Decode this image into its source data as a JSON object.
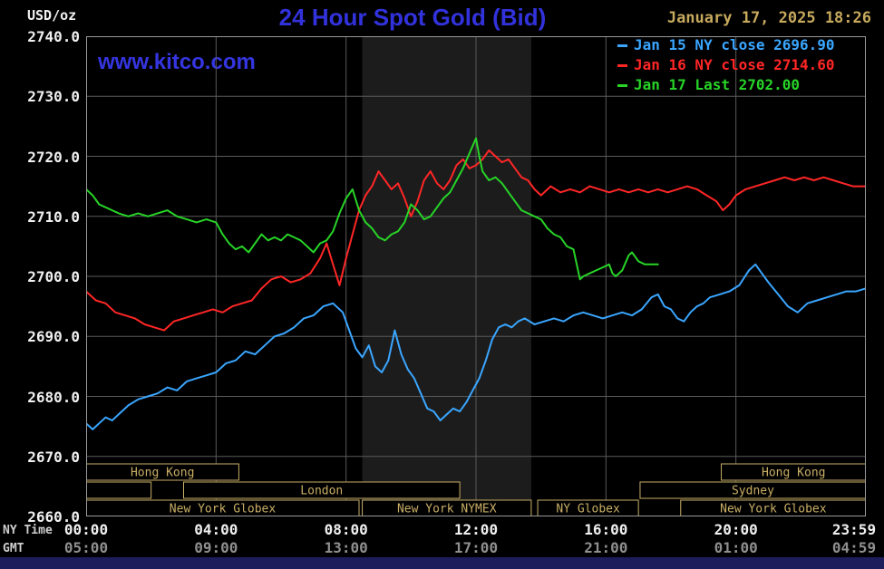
{
  "header": {
    "units": "USD/oz",
    "title": "24 Hour Spot Gold (Bid)",
    "datetime": "January 17, 2025 18:26",
    "watermark": "www.kitco.com"
  },
  "legend": [
    {
      "label": "Jan 15 NY close 2696.90",
      "color": "#3aa6ff"
    },
    {
      "label": "Jan 16 NY close 2714.60",
      "color": "#ff2626"
    },
    {
      "label": "Jan 17 Last 2702.00",
      "color": "#27d427"
    }
  ],
  "axes": {
    "ny_time_label": "NY Time",
    "gmt_label": "GMT",
    "y_ticks": [
      "2740.0",
      "2730.0",
      "2720.0",
      "2710.0",
      "2700.0",
      "2690.0",
      "2680.0",
      "2670.0",
      "2660.0"
    ],
    "x_tick_hours": [
      0,
      4,
      8,
      12,
      16,
      20,
      23.983
    ],
    "x_ticks_ny": [
      "00:00",
      "04:00",
      "08:00",
      "12:00",
      "16:00",
      "20:00",
      "23:59"
    ],
    "x_ticks_gmt": [
      "05:00",
      "09:00",
      "13:00",
      "17:00",
      "21:00",
      "01:00",
      "04:59"
    ]
  },
  "sessions": [
    {
      "row": 1,
      "start": 0,
      "end": 4.7,
      "label": "Hong Kong"
    },
    {
      "row": 1,
      "start": 19.55,
      "end": 24,
      "label": "Hong Kong"
    },
    {
      "row": 2,
      "start": 0,
      "end": 2.0,
      "label": ""
    },
    {
      "row": 2,
      "start": 3.0,
      "end": 11.5,
      "label": "London"
    },
    {
      "row": 2,
      "start": 17.05,
      "end": 24,
      "label": "Sydney"
    },
    {
      "row": 3,
      "start": 0,
      "end": 8.4,
      "label": "New York Globex"
    },
    {
      "row": 3,
      "start": 8.5,
      "end": 13.7,
      "label": "New York NYMEX"
    },
    {
      "row": 3,
      "start": 13.9,
      "end": 17.0,
      "label": "NY Globex"
    },
    {
      "row": 3,
      "start": 18.3,
      "end": 24,
      "label": "New York Globex"
    }
  ],
  "colors": {
    "background": "#000000",
    "grid": "#5a5a5a",
    "plot_border": "#999999",
    "shaded_band": "#1c1c1c",
    "session_box": "#c9ae66",
    "title_blue": "#3232dd",
    "date_gold": "#c6a95d",
    "gmt_tick_gray": "#8f8f8f",
    "bottom_bar": "#1d1d5c"
  },
  "chart_data": {
    "type": "line",
    "title": "24 Hour Spot Gold (Bid)",
    "ylabel": "USD/oz",
    "x_unit": "hours, NY time",
    "x_range": [
      0,
      24
    ],
    "ylim": [
      2660,
      2740
    ],
    "y_gridline_step": 10,
    "x_gridline_hours": [
      4,
      8,
      12,
      16,
      20
    ],
    "shaded_band_hours": [
      8.5,
      13.7
    ],
    "legend_position": "top-right",
    "grid": true,
    "series": [
      {
        "id": "jan15",
        "name": "Jan 15 NY close",
        "close": 2696.9,
        "color": "#3aa6ff",
        "points": [
          [
            0,
            2675.5
          ],
          [
            0.2,
            2674.5
          ],
          [
            0.4,
            2675.5
          ],
          [
            0.6,
            2676.5
          ],
          [
            0.8,
            2676
          ],
          [
            1,
            2677
          ],
          [
            1.3,
            2678.5
          ],
          [
            1.6,
            2679.5
          ],
          [
            1.9,
            2680
          ],
          [
            2.2,
            2680.5
          ],
          [
            2.5,
            2681.5
          ],
          [
            2.8,
            2681
          ],
          [
            3.1,
            2682.5
          ],
          [
            3.4,
            2683
          ],
          [
            3.7,
            2683.5
          ],
          [
            4,
            2684
          ],
          [
            4.3,
            2685.5
          ],
          [
            4.6,
            2686
          ],
          [
            4.9,
            2687.5
          ],
          [
            5.2,
            2687
          ],
          [
            5.5,
            2688.5
          ],
          [
            5.8,
            2690
          ],
          [
            6.1,
            2690.5
          ],
          [
            6.4,
            2691.5
          ],
          [
            6.7,
            2693
          ],
          [
            7,
            2693.5
          ],
          [
            7.3,
            2695
          ],
          [
            7.6,
            2695.5
          ],
          [
            7.9,
            2694
          ],
          [
            8.1,
            2691
          ],
          [
            8.3,
            2688
          ],
          [
            8.5,
            2686.5
          ],
          [
            8.7,
            2688.5
          ],
          [
            8.9,
            2685
          ],
          [
            9.1,
            2684
          ],
          [
            9.3,
            2686
          ],
          [
            9.5,
            2691
          ],
          [
            9.7,
            2687
          ],
          [
            9.9,
            2684.5
          ],
          [
            10.1,
            2683
          ],
          [
            10.3,
            2680.5
          ],
          [
            10.5,
            2678
          ],
          [
            10.7,
            2677.5
          ],
          [
            10.9,
            2676
          ],
          [
            11.1,
            2677
          ],
          [
            11.3,
            2678
          ],
          [
            11.5,
            2677.5
          ],
          [
            11.7,
            2679
          ],
          [
            11.9,
            2681
          ],
          [
            12.1,
            2683
          ],
          [
            12.3,
            2686
          ],
          [
            12.5,
            2689.5
          ],
          [
            12.7,
            2691.5
          ],
          [
            12.9,
            2692
          ],
          [
            13.1,
            2691.5
          ],
          [
            13.3,
            2692.5
          ],
          [
            13.5,
            2693
          ],
          [
            13.8,
            2692
          ],
          [
            14.1,
            2692.5
          ],
          [
            14.4,
            2693
          ],
          [
            14.7,
            2692.5
          ],
          [
            15,
            2693.5
          ],
          [
            15.3,
            2694
          ],
          [
            15.6,
            2693.5
          ],
          [
            15.9,
            2693
          ],
          [
            16.2,
            2693.5
          ],
          [
            16.5,
            2694
          ],
          [
            16.8,
            2693.5
          ],
          [
            17.1,
            2694.5
          ],
          [
            17.4,
            2696.5
          ],
          [
            17.6,
            2697
          ],
          [
            17.8,
            2695
          ],
          [
            18,
            2694.5
          ],
          [
            18.2,
            2693
          ],
          [
            18.4,
            2692.5
          ],
          [
            18.6,
            2694
          ],
          [
            18.8,
            2695
          ],
          [
            19,
            2695.5
          ],
          [
            19.2,
            2696.5
          ],
          [
            19.5,
            2697
          ],
          [
            19.8,
            2697.5
          ],
          [
            20.1,
            2698.5
          ],
          [
            20.4,
            2701
          ],
          [
            20.6,
            2702
          ],
          [
            20.8,
            2700.5
          ],
          [
            21,
            2699
          ],
          [
            21.3,
            2697
          ],
          [
            21.6,
            2695
          ],
          [
            21.9,
            2694
          ],
          [
            22.2,
            2695.5
          ],
          [
            22.5,
            2696
          ],
          [
            22.8,
            2696.5
          ],
          [
            23.1,
            2697
          ],
          [
            23.4,
            2697.5
          ],
          [
            23.7,
            2697.5
          ],
          [
            24,
            2698
          ]
        ]
      },
      {
        "id": "jan16",
        "name": "Jan 16 NY close",
        "close": 2714.6,
        "color": "#ff2626",
        "points": [
          [
            0,
            2697.5
          ],
          [
            0.3,
            2696
          ],
          [
            0.6,
            2695.5
          ],
          [
            0.9,
            2694
          ],
          [
            1.2,
            2693.5
          ],
          [
            1.5,
            2693
          ],
          [
            1.8,
            2692
          ],
          [
            2.1,
            2691.5
          ],
          [
            2.4,
            2691
          ],
          [
            2.7,
            2692.5
          ],
          [
            3,
            2693
          ],
          [
            3.3,
            2693.5
          ],
          [
            3.6,
            2694
          ],
          [
            3.9,
            2694.5
          ],
          [
            4.2,
            2694
          ],
          [
            4.5,
            2695
          ],
          [
            4.8,
            2695.5
          ],
          [
            5.1,
            2696
          ],
          [
            5.4,
            2698
          ],
          [
            5.7,
            2699.5
          ],
          [
            6,
            2700
          ],
          [
            6.3,
            2699
          ],
          [
            6.6,
            2699.5
          ],
          [
            6.9,
            2700.5
          ],
          [
            7.2,
            2703
          ],
          [
            7.4,
            2705.5
          ],
          [
            7.6,
            2702
          ],
          [
            7.8,
            2698.5
          ],
          [
            8,
            2703
          ],
          [
            8.2,
            2707
          ],
          [
            8.4,
            2711
          ],
          [
            8.6,
            2713.5
          ],
          [
            8.8,
            2715
          ],
          [
            9,
            2717.5
          ],
          [
            9.2,
            2716
          ],
          [
            9.4,
            2714.5
          ],
          [
            9.6,
            2715.5
          ],
          [
            9.8,
            2713
          ],
          [
            10,
            2710
          ],
          [
            10.2,
            2712.5
          ],
          [
            10.4,
            2716
          ],
          [
            10.6,
            2717.5
          ],
          [
            10.8,
            2715.5
          ],
          [
            11,
            2714.5
          ],
          [
            11.2,
            2716
          ],
          [
            11.4,
            2718.5
          ],
          [
            11.6,
            2719.5
          ],
          [
            11.8,
            2718
          ],
          [
            12,
            2718.5
          ],
          [
            12.2,
            2719.5
          ],
          [
            12.4,
            2721
          ],
          [
            12.6,
            2720
          ],
          [
            12.8,
            2719
          ],
          [
            13,
            2719.5
          ],
          [
            13.2,
            2718
          ],
          [
            13.4,
            2716.5
          ],
          [
            13.6,
            2716
          ],
          [
            13.8,
            2714.5
          ],
          [
            14,
            2713.5
          ],
          [
            14.3,
            2715
          ],
          [
            14.6,
            2714
          ],
          [
            14.9,
            2714.5
          ],
          [
            15.2,
            2714
          ],
          [
            15.5,
            2715
          ],
          [
            15.8,
            2714.5
          ],
          [
            16.1,
            2714
          ],
          [
            16.4,
            2714.5
          ],
          [
            16.7,
            2714
          ],
          [
            17,
            2714.5
          ],
          [
            17.3,
            2714
          ],
          [
            17.6,
            2714.5
          ],
          [
            17.9,
            2714
          ],
          [
            18.2,
            2714.5
          ],
          [
            18.5,
            2715
          ],
          [
            18.8,
            2714.5
          ],
          [
            19.1,
            2713.5
          ],
          [
            19.4,
            2712.5
          ],
          [
            19.6,
            2711
          ],
          [
            19.8,
            2712
          ],
          [
            20,
            2713.5
          ],
          [
            20.3,
            2714.5
          ],
          [
            20.6,
            2715
          ],
          [
            20.9,
            2715.5
          ],
          [
            21.2,
            2716
          ],
          [
            21.5,
            2716.5
          ],
          [
            21.8,
            2716
          ],
          [
            22.1,
            2716.5
          ],
          [
            22.4,
            2716
          ],
          [
            22.7,
            2716.5
          ],
          [
            23,
            2716
          ],
          [
            23.3,
            2715.5
          ],
          [
            23.6,
            2715
          ],
          [
            24,
            2715
          ]
        ]
      },
      {
        "id": "jan17",
        "name": "Jan 17 Last",
        "close": 2702.0,
        "color": "#27d427",
        "points": [
          [
            0,
            2714.5
          ],
          [
            0.2,
            2713.5
          ],
          [
            0.4,
            2712
          ],
          [
            0.6,
            2711.5
          ],
          [
            0.8,
            2711
          ],
          [
            1,
            2710.5
          ],
          [
            1.3,
            2710
          ],
          [
            1.6,
            2710.5
          ],
          [
            1.9,
            2710
          ],
          [
            2.2,
            2710.5
          ],
          [
            2.5,
            2711
          ],
          [
            2.8,
            2710
          ],
          [
            3.1,
            2709.5
          ],
          [
            3.4,
            2709
          ],
          [
            3.7,
            2709.5
          ],
          [
            4,
            2709
          ],
          [
            4.2,
            2707
          ],
          [
            4.4,
            2705.5
          ],
          [
            4.6,
            2704.5
          ],
          [
            4.8,
            2705
          ],
          [
            5,
            2704
          ],
          [
            5.2,
            2705.5
          ],
          [
            5.4,
            2707
          ],
          [
            5.6,
            2706
          ],
          [
            5.8,
            2706.5
          ],
          [
            6,
            2706
          ],
          [
            6.2,
            2707
          ],
          [
            6.4,
            2706.5
          ],
          [
            6.6,
            2706
          ],
          [
            6.8,
            2705
          ],
          [
            7,
            2704
          ],
          [
            7.2,
            2705.5
          ],
          [
            7.4,
            2706
          ],
          [
            7.6,
            2707.5
          ],
          [
            7.8,
            2710.5
          ],
          [
            8,
            2713
          ],
          [
            8.2,
            2714.5
          ],
          [
            8.4,
            2711
          ],
          [
            8.6,
            2709
          ],
          [
            8.8,
            2708
          ],
          [
            9,
            2706.5
          ],
          [
            9.2,
            2706
          ],
          [
            9.4,
            2707
          ],
          [
            9.6,
            2707.5
          ],
          [
            9.8,
            2709
          ],
          [
            10,
            2712
          ],
          [
            10.2,
            2711
          ],
          [
            10.4,
            2709.5
          ],
          [
            10.6,
            2710
          ],
          [
            10.8,
            2711.5
          ],
          [
            11,
            2713
          ],
          [
            11.2,
            2714
          ],
          [
            11.4,
            2716
          ],
          [
            11.6,
            2718
          ],
          [
            11.8,
            2720.5
          ],
          [
            12,
            2723
          ],
          [
            12.1,
            2720
          ],
          [
            12.2,
            2717.5
          ],
          [
            12.4,
            2716
          ],
          [
            12.6,
            2716.5
          ],
          [
            12.8,
            2715.5
          ],
          [
            13,
            2714
          ],
          [
            13.2,
            2712.5
          ],
          [
            13.4,
            2711
          ],
          [
            13.6,
            2710.5
          ],
          [
            13.8,
            2710
          ],
          [
            14,
            2709.5
          ],
          [
            14.2,
            2708
          ],
          [
            14.4,
            2707
          ],
          [
            14.6,
            2706.5
          ],
          [
            14.8,
            2705
          ],
          [
            15,
            2704.5
          ],
          [
            15.1,
            2702
          ],
          [
            15.2,
            2699.5
          ],
          [
            15.3,
            2700
          ],
          [
            15.5,
            2700.5
          ],
          [
            15.7,
            2701
          ],
          [
            15.9,
            2701.5
          ],
          [
            16.1,
            2702
          ],
          [
            16.2,
            2700.5
          ],
          [
            16.3,
            2700
          ],
          [
            16.5,
            2701
          ],
          [
            16.7,
            2703.5
          ],
          [
            16.8,
            2704
          ],
          [
            17,
            2702.5
          ],
          [
            17.2,
            2702
          ],
          [
            17.6,
            2702
          ]
        ]
      }
    ]
  }
}
